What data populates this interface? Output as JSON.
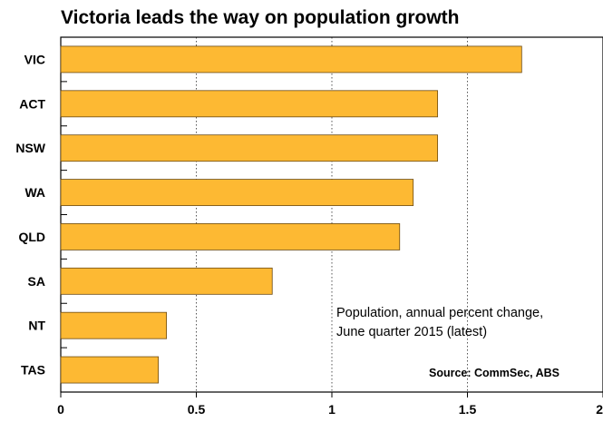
{
  "chart_data": {
    "type": "bar",
    "orientation": "horizontal",
    "title": "Victoria leads the way on population growth",
    "categories": [
      "VIC",
      "ACT",
      "NSW",
      "WA",
      "QLD",
      "SA",
      "NT",
      "TAS"
    ],
    "values": [
      1.7,
      1.39,
      1.39,
      1.3,
      1.25,
      0.78,
      0.39,
      0.36
    ],
    "xlim": [
      0,
      2
    ],
    "xticks": [
      0,
      0.5,
      1,
      1.5,
      2
    ],
    "xtick_labels": [
      "0",
      "0.5",
      "1",
      "1.5",
      "2"
    ],
    "grid": "vertical-dotted",
    "bar_color": "#FDB933",
    "bar_edge_color": "#6b4a12",
    "annotation": [
      "Population, annual percent change,",
      "June quarter 2015 (latest)"
    ],
    "source": "Source: CommSec, ABS"
  }
}
